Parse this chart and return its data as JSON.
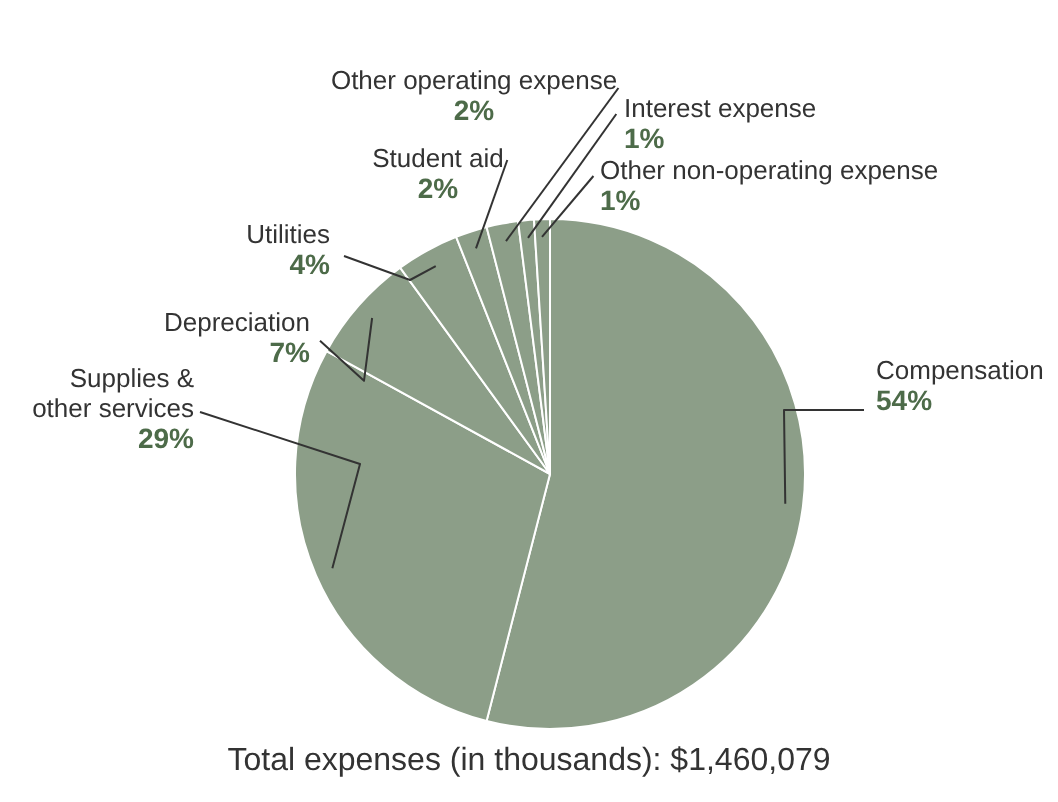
{
  "chart_data": {
    "type": "pie",
    "categories": [
      "Compensation",
      "Supplies & other services",
      "Depreciation",
      "Utilities",
      "Student aid",
      "Other operating expense",
      "Interest expense",
      "Other non-operating expense"
    ],
    "values": [
      54,
      29,
      7,
      4,
      2,
      2,
      1,
      1
    ],
    "value_labels": [
      "54%",
      "29%",
      "7%",
      "4%",
      "2%",
      "2%",
      "1%",
      "1%"
    ],
    "colors": [
      "#8c9e88",
      "#8c9e88",
      "#8c9e88",
      "#8c9e88",
      "#8c9e88",
      "#8c9e88",
      "#8c9e88",
      "#8c9e88"
    ],
    "legend": false,
    "annotations": [
      "Total expenses (in thousands): $1,460,079"
    ]
  }
}
